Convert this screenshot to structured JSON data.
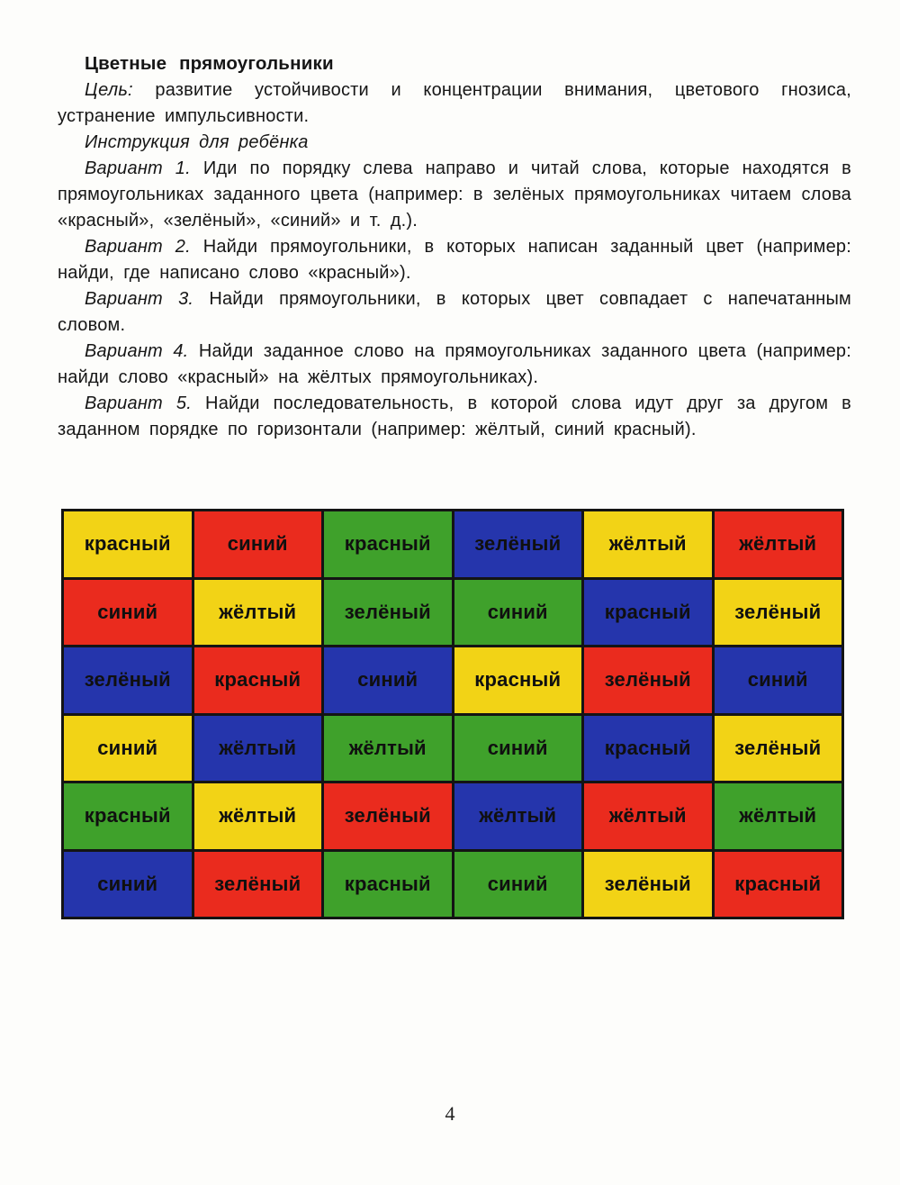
{
  "document": {
    "title": "Цветные  прямоугольники",
    "paragraphs": [
      {
        "lead": "Цель:",
        "body": "развитие устойчивости и концентрации внимания, цветового гнозиса, устранение импульсивности."
      },
      {
        "lead": "Инструкция для ребёнка",
        "body": ""
      },
      {
        "lead": "Вариант 1.",
        "body": "Иди по порядку слева направо и читай слова, которые находятся в прямоугольниках заданного цвета (например: в зелёных прямоугольниках читаем слова «красный», «зелёный», «синий» и т. д.)."
      },
      {
        "lead": "Вариант 2.",
        "body": "Найди прямоугольники, в которых написан заданный цвет (например: найди, где написано слово «красный»)."
      },
      {
        "lead": "Вариант 3.",
        "body": "Найди прямоугольники, в которых цвет совпадает с напечатанным словом."
      },
      {
        "lead": "Вариант 4.",
        "body": "Найди заданное слово на прямоугольниках заданного цвета (например: найди слово «красный» на жёлтых прямоугольниках)."
      },
      {
        "lead": "Вариант 5.",
        "body": "Найди последовательность, в которой слова идут друг за другом в заданном порядке по горизонтали (например: жёлтый, синий красный)."
      }
    ],
    "page_number": "4"
  },
  "colors": {
    "yellow": "#f2d316",
    "red": "#ea2b1e",
    "green": "#3fa12b",
    "blue": "#2535ac",
    "cell_text": "#101010",
    "grid_border": "#141414"
  },
  "grid": {
    "columns": 6,
    "rows": [
      [
        {
          "bg": "yellow",
          "word": "красный"
        },
        {
          "bg": "red",
          "word": "синий"
        },
        {
          "bg": "green",
          "word": "красный"
        },
        {
          "bg": "blue",
          "word": "зелёный"
        },
        {
          "bg": "yellow",
          "word": "жёлтый"
        },
        {
          "bg": "red",
          "word": "жёлтый"
        }
      ],
      [
        {
          "bg": "red",
          "word": "синий"
        },
        {
          "bg": "yellow",
          "word": "жёлтый"
        },
        {
          "bg": "green",
          "word": "зелёный"
        },
        {
          "bg": "green",
          "word": "синий"
        },
        {
          "bg": "blue",
          "word": "красный"
        },
        {
          "bg": "yellow",
          "word": "зелёный"
        }
      ],
      [
        {
          "bg": "blue",
          "word": "зелёный"
        },
        {
          "bg": "red",
          "word": "красный"
        },
        {
          "bg": "blue",
          "word": "синий"
        },
        {
          "bg": "yellow",
          "word": "красный"
        },
        {
          "bg": "red",
          "word": "зелёный"
        },
        {
          "bg": "blue",
          "word": "синий"
        }
      ],
      [
        {
          "bg": "yellow",
          "word": "синий"
        },
        {
          "bg": "blue",
          "word": "жёлтый"
        },
        {
          "bg": "green",
          "word": "жёлтый"
        },
        {
          "bg": "green",
          "word": "синий"
        },
        {
          "bg": "blue",
          "word": "красный"
        },
        {
          "bg": "yellow",
          "word": "зелёный"
        }
      ],
      [
        {
          "bg": "green",
          "word": "красный"
        },
        {
          "bg": "yellow",
          "word": "жёлтый"
        },
        {
          "bg": "red",
          "word": "зелёный"
        },
        {
          "bg": "blue",
          "word": "жёлтый"
        },
        {
          "bg": "red",
          "word": "жёлтый"
        },
        {
          "bg": "green",
          "word": "жёлтый"
        }
      ],
      [
        {
          "bg": "blue",
          "word": "синий"
        },
        {
          "bg": "red",
          "word": "зелёный"
        },
        {
          "bg": "green",
          "word": "красный"
        },
        {
          "bg": "green",
          "word": "синий"
        },
        {
          "bg": "yellow",
          "word": "зелёный"
        },
        {
          "bg": "red",
          "word": "красный"
        }
      ]
    ]
  }
}
